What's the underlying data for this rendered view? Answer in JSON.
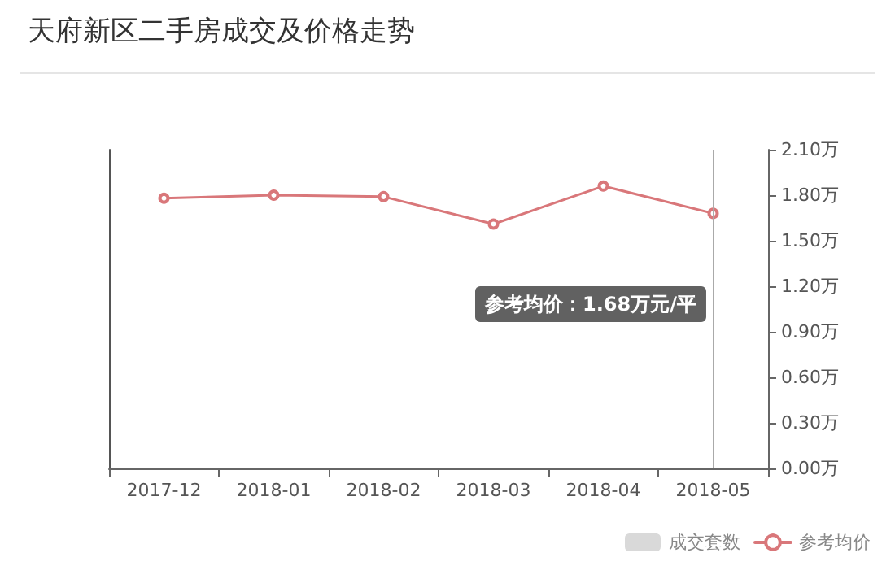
{
  "chart_data": {
    "type": "line",
    "title": "天府新区二手房成交及价格走势",
    "categories": [
      "2017-12",
      "2018-01",
      "2018-02",
      "2018-03",
      "2018-04",
      "2018-05"
    ],
    "series": [
      {
        "name": "成交套数",
        "type": "bar",
        "color": "#d9d9d9",
        "values": [
          null,
          null,
          null,
          null,
          null,
          null
        ]
      },
      {
        "name": "参考均价",
        "axis": "y2",
        "color": "#d9777a",
        "values": [
          1.78,
          1.8,
          1.79,
          1.61,
          1.86,
          1.68
        ]
      }
    ],
    "y2lim": [
      0,
      2.1
    ],
    "y2ticks": [
      {
        "value": 0,
        "label": "0.00万"
      },
      {
        "value": 0.3,
        "label": "0.30万"
      },
      {
        "value": 0.6,
        "label": "0.60万"
      },
      {
        "value": 0.9,
        "label": "0.90万"
      },
      {
        "value": 1.2,
        "label": "1.20万"
      },
      {
        "value": 1.5,
        "label": "1.50万"
      },
      {
        "value": 1.8,
        "label": "1.80万"
      },
      {
        "value": 2.1,
        "label": "2.10万"
      }
    ],
    "ref_lines": [
      {
        "axis": "x",
        "value": "2018-05",
        "color": "#aaaaaa"
      }
    ],
    "annotations": [
      "参考均价：1.68万元/平"
    ],
    "marker": "circle",
    "line_style": "solid",
    "grid": false,
    "legend": "bottom right"
  }
}
